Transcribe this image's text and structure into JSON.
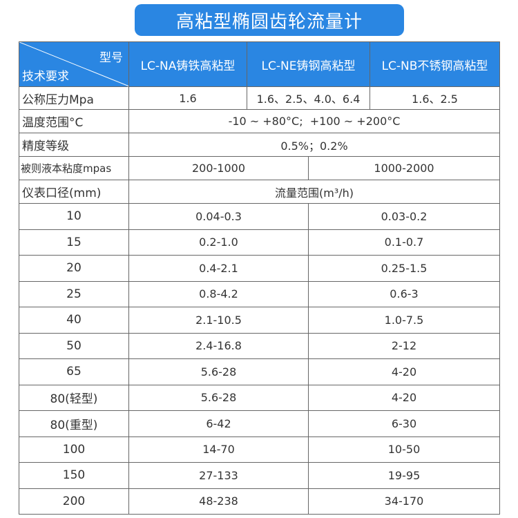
{
  "title": "高粘型椭圆齿轮流量计",
  "header": {
    "corner_top": "型号",
    "corner_bottom": "技术要求",
    "models": [
      "LC-NA铸铁高粘型",
      "LC-NE铸钢高粘型",
      "LC-NB不锈钢高粘型"
    ]
  },
  "pressure": {
    "label": "公称压力Mpa",
    "values": [
      "1.6",
      "1.6、2.5、4.0、6.4",
      "1.6、2.5"
    ]
  },
  "temperature": {
    "label": "温度范围°C",
    "value": "-10 ~ +80°C;  +100 ~ +200°C"
  },
  "accuracy": {
    "label": "精度等级",
    "value": "0.5%；0.2%"
  },
  "viscosity": {
    "label": "被则液本粘度mpas",
    "values": [
      "200-1000",
      "1000-2000"
    ]
  },
  "caliber": {
    "label": "仪表口径(mm)",
    "value": "流量范围(m³/h)"
  },
  "rows": [
    [
      "10",
      "0.04-0.3",
      "0.03-0.2"
    ],
    [
      "15",
      "0.2-1.0",
      "0.1-0.7"
    ],
    [
      "20",
      "0.4-2.1",
      "0.25-1.5"
    ],
    [
      "25",
      "0.8-4.2",
      "0.6-3"
    ],
    [
      "40",
      "2.1-10.5",
      "1.0-7.5"
    ],
    [
      "50",
      "2.4-16.8",
      "2-12"
    ],
    [
      "65",
      "5.6-28",
      "4-20"
    ],
    [
      "80(轻型)",
      "5.6-28",
      "4-20"
    ],
    [
      "80(重型)",
      "6-42",
      "6-30"
    ],
    [
      "100",
      "14-70",
      "10-50"
    ],
    [
      "150",
      "27-133",
      "19-95"
    ],
    [
      "200",
      "48-238",
      "34-170"
    ]
  ]
}
